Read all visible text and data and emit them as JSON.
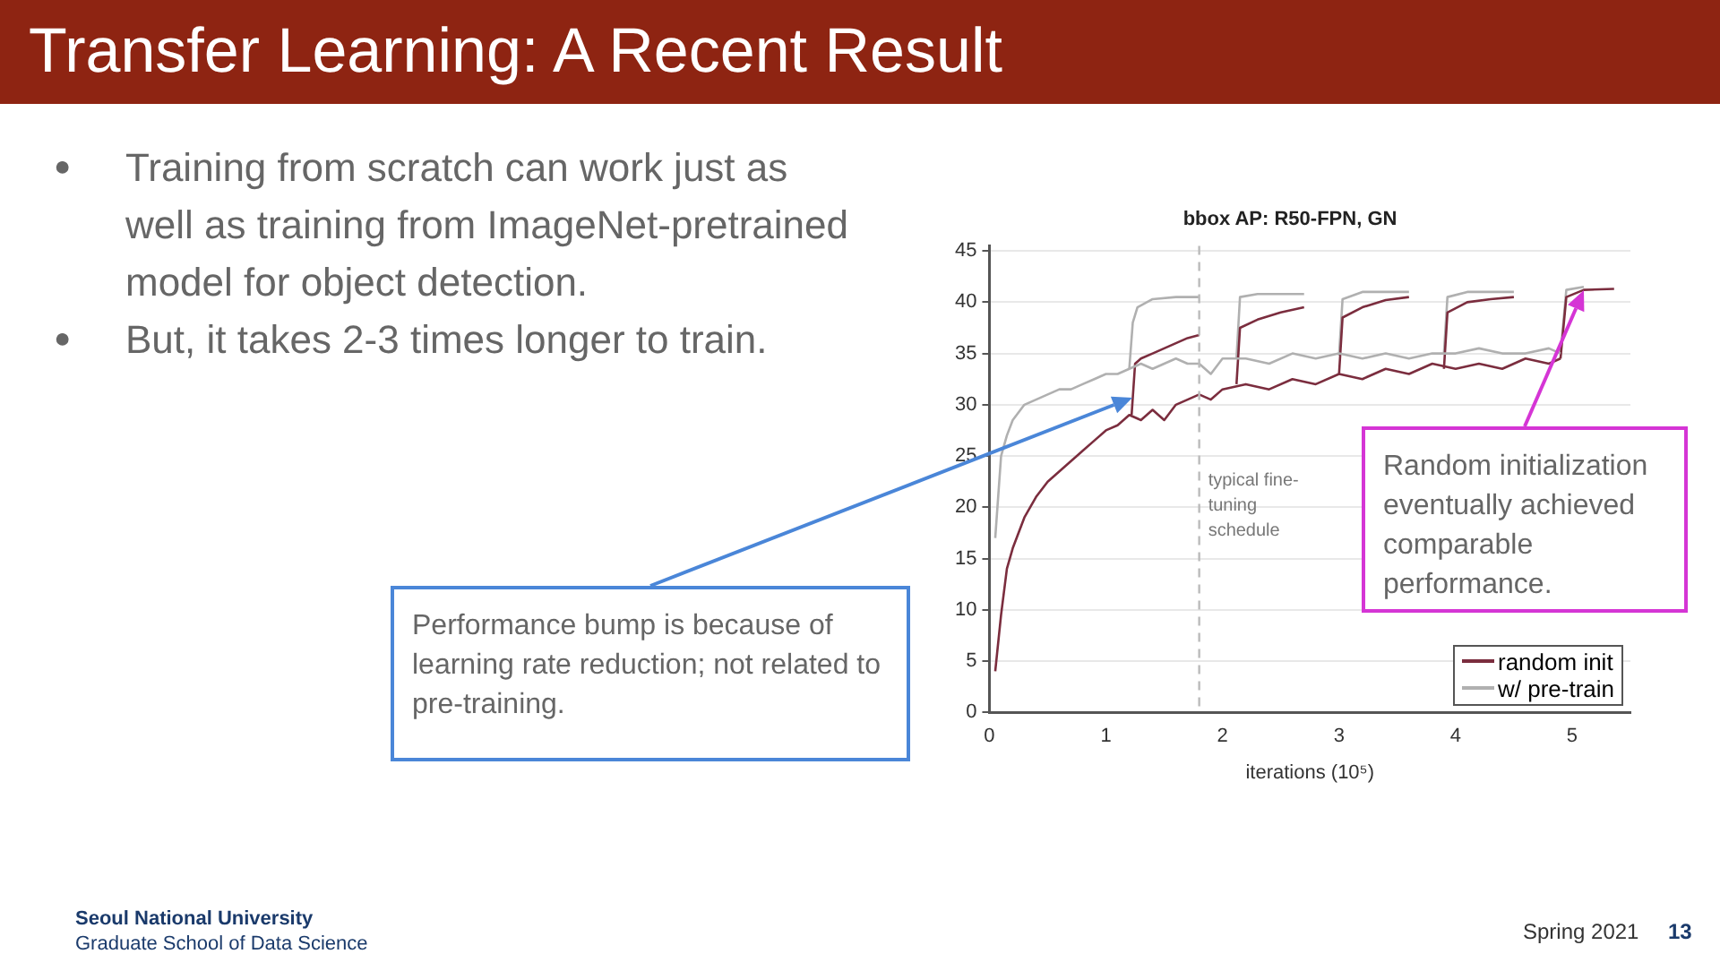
{
  "chart_data": {
    "type": "line",
    "title": "Transfer Learning: A Recent Result",
    "subtitle": "bbox AP: R50-FPN, GN",
    "xlabel": "iterations (10⁵)",
    "xlim": [
      0,
      5.5
    ],
    "xticks": [
      0,
      1,
      2,
      3,
      4,
      5
    ],
    "ylim": [
      0,
      45.5
    ],
    "yticks": [
      0,
      5,
      10,
      15,
      20,
      25,
      30,
      35,
      40,
      45
    ],
    "grid": "y",
    "legend": "bottom right",
    "series": [
      {
        "name": "random init",
        "color": "#7b2d3e",
        "x": [
          0.05,
          0.1,
          0.15,
          0.2,
          0.3,
          0.4,
          0.5,
          0.6,
          0.7,
          0.8,
          0.9,
          1.0,
          1.1,
          1.2,
          1.3,
          1.4,
          1.5,
          1.6,
          1.7,
          1.8,
          1.9,
          2.0,
          2.2,
          2.4,
          2.6,
          2.8,
          3.0,
          3.2,
          3.4,
          3.6,
          3.8,
          4.0,
          4.2,
          4.4,
          4.6,
          4.8,
          4.9
        ],
        "values": [
          4,
          9.5,
          14,
          16,
          19,
          21,
          22.5,
          23.5,
          24.5,
          25.5,
          26.5,
          27.5,
          28,
          29,
          28.5,
          29.5,
          28.5,
          30,
          30.5,
          31,
          30.5,
          31.5,
          32,
          31.5,
          32.5,
          32,
          33,
          32.5,
          33.5,
          33,
          34,
          33.5,
          34,
          33.5,
          34.5,
          34,
          34.5
        ]
      },
      {
        "name": "w/ pre-train",
        "color": "#b0b0b0",
        "x": [
          0.05,
          0.1,
          0.15,
          0.2,
          0.3,
          0.4,
          0.5,
          0.6,
          0.7,
          0.8,
          0.9,
          1.0,
          1.1,
          1.2,
          1.3,
          1.4,
          1.5,
          1.6,
          1.7,
          1.8,
          1.9,
          2.0,
          2.2,
          2.4,
          2.6,
          2.8,
          3.0,
          3.2,
          3.4,
          3.6,
          3.8,
          4.0,
          4.2,
          4.4,
          4.6,
          4.8,
          4.9
        ],
        "values": [
          17,
          25,
          27,
          28.5,
          30,
          30.5,
          31,
          31.5,
          31.5,
          32,
          32.5,
          33,
          33,
          33.5,
          34,
          33.5,
          34,
          34.5,
          34,
          34,
          33,
          34.5,
          34.5,
          34,
          35,
          34.5,
          35,
          34.5,
          35,
          34.5,
          35,
          35,
          35.5,
          35,
          35,
          35.5,
          35
        ]
      },
      {
        "color": "#7b2d3e",
        "x": [
          1.22,
          1.25,
          1.3,
          1.4,
          1.5,
          1.6,
          1.7,
          1.8
        ],
        "values": [
          29,
          34,
          34.5,
          35,
          35.5,
          36,
          36.5,
          36.8
        ]
      },
      {
        "color": "#b0b0b0",
        "x": [
          1.2,
          1.23,
          1.27,
          1.4,
          1.6,
          1.8
        ],
        "values": [
          33.5,
          38,
          39.5,
          40.3,
          40.5,
          40.5
        ]
      },
      {
        "color": "#7b2d3e",
        "x": [
          2.12,
          2.15,
          2.3,
          2.5,
          2.7
        ],
        "values": [
          32,
          37.5,
          38.3,
          39,
          39.5
        ]
      },
      {
        "color": "#b0b0b0",
        "x": [
          2.12,
          2.15,
          2.3,
          2.7
        ],
        "values": [
          34.5,
          40.5,
          40.8,
          40.8
        ]
      },
      {
        "color": "#7b2d3e",
        "x": [
          3.0,
          3.03,
          3.2,
          3.4,
          3.6
        ],
        "values": [
          33,
          38.5,
          39.5,
          40.2,
          40.5
        ]
      },
      {
        "color": "#b0b0b0",
        "x": [
          3.0,
          3.03,
          3.2,
          3.6
        ],
        "values": [
          34.8,
          40.3,
          41,
          41
        ]
      },
      {
        "color": "#7b2d3e",
        "x": [
          3.9,
          3.93,
          4.1,
          4.3,
          4.5
        ],
        "values": [
          33.5,
          39,
          40,
          40.3,
          40.5
        ]
      },
      {
        "color": "#b0b0b0",
        "x": [
          3.9,
          3.93,
          4.1,
          4.5
        ],
        "values": [
          35,
          40.5,
          41,
          41
        ]
      },
      {
        "color": "#7b2d3e",
        "x": [
          4.9,
          4.95,
          5.1,
          5.36
        ],
        "values": [
          34.5,
          40.5,
          41.2,
          41.3
        ]
      },
      {
        "color": "#b0b0b0",
        "x": [
          4.9,
          4.95,
          5.1
        ],
        "values": [
          35,
          41.2,
          41.5
        ]
      }
    ],
    "ref_lines": [
      {
        "axis": "x",
        "value": 1.8,
        "label": "typical fine-tuning schedule",
        "color": "#bbbbbb",
        "line_style": "dashed"
      }
    ],
    "annotations": [
      "●",
      "Training from scratch can work just as well as training from ImageNet-pretrained model for object detection.",
      "●",
      "But, it takes 2-3 times longer to train.",
      "Performance bump is because of learning rate reduction; not related to pre-training.",
      "Random initialization eventually achieved comparable performance.",
      "Seoul National University",
      "Graduate School of Data Science",
      "Spring 2021",
      "13"
    ]
  }
}
